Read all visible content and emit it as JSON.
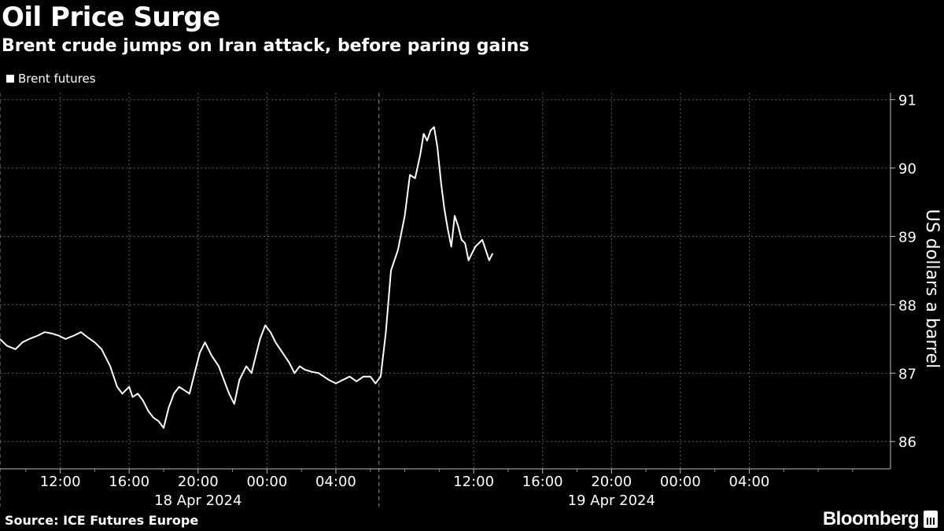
{
  "title": "Oil Price Surge",
  "subtitle": "Brent crude jumps on Iran attack, before paring gains",
  "source": "Source: ICE Futures Europe",
  "brand": "Bloomberg",
  "chart_data": {
    "type": "line",
    "title": "Oil Price Surge",
    "subtitle": "Brent crude jumps on Iran attack, before paring gains",
    "ylabel": "US dollars a barrel",
    "ylim": [
      85.6,
      91.1
    ],
    "y_ticks": [
      86,
      87,
      88,
      89,
      90,
      91
    ],
    "grid": true,
    "legend_position": "top-left",
    "x_unit": "hours since 18 Apr 2024 00:00",
    "xlim": [
      8.5,
      60.2
    ],
    "x_tick_hours": [
      12,
      16,
      20,
      24,
      28,
      36,
      40,
      44,
      48,
      52
    ],
    "x_tick_labels": [
      "12:00",
      "16:00",
      "20:00",
      "00:00",
      "04:00",
      "12:00",
      "16:00",
      "20:00",
      "00:00",
      "04:00"
    ],
    "date_labels": [
      {
        "label": "18 Apr 2024",
        "hour": 20
      },
      {
        "label": "19 Apr 2024",
        "hour": 44
      }
    ],
    "date_separators": [
      8.5,
      30.5
    ],
    "series": [
      {
        "name": "Brent futures",
        "color": "#ffffff",
        "x": [
          8.5,
          8.9,
          9.4,
          9.8,
          10.2,
          10.7,
          11.1,
          11.5,
          11.9,
          12.3,
          12.8,
          13.2,
          13.6,
          14.0,
          14.4,
          14.9,
          15.3,
          15.6,
          15.8,
          16.0,
          16.2,
          16.5,
          16.8,
          17.1,
          17.4,
          17.7,
          18.0,
          18.3,
          18.6,
          18.9,
          19.2,
          19.5,
          19.8,
          20.1,
          20.4,
          20.8,
          21.2,
          21.5,
          21.8,
          22.1,
          22.4,
          22.8,
          23.1,
          23.4,
          23.6,
          23.9,
          24.2,
          24.5,
          24.9,
          25.3,
          25.6,
          25.9,
          26.2,
          26.6,
          27.0,
          27.3,
          27.6,
          28.0,
          28.4,
          28.8,
          29.2,
          29.6,
          30.0,
          30.3,
          30.6,
          30.9,
          31.2,
          31.6,
          32.0,
          32.3,
          32.6,
          32.9,
          33.1,
          33.3,
          33.5,
          33.7,
          33.9,
          34.1,
          34.3,
          34.5,
          34.7,
          34.9,
          35.1,
          35.3,
          35.5,
          35.7,
          35.9,
          36.1,
          36.3,
          36.5,
          36.7,
          36.9,
          37.1
        ],
        "y": [
          87.5,
          87.4,
          87.35,
          87.45,
          87.5,
          87.55,
          87.6,
          87.58,
          87.55,
          87.5,
          87.55,
          87.6,
          87.52,
          87.45,
          87.35,
          87.1,
          86.8,
          86.7,
          86.75,
          86.8,
          86.65,
          86.7,
          86.6,
          86.45,
          86.35,
          86.3,
          86.2,
          86.5,
          86.7,
          86.8,
          86.75,
          86.7,
          87.0,
          87.3,
          87.45,
          87.25,
          87.1,
          86.9,
          86.7,
          86.55,
          86.9,
          87.1,
          87.0,
          87.3,
          87.5,
          87.7,
          87.6,
          87.45,
          87.3,
          87.15,
          87.0,
          87.1,
          87.05,
          87.02,
          87.0,
          86.95,
          86.9,
          86.85,
          86.9,
          86.95,
          86.88,
          86.95,
          86.95,
          86.85,
          86.95,
          87.6,
          88.5,
          88.8,
          89.3,
          89.9,
          89.85,
          90.2,
          90.5,
          90.4,
          90.55,
          90.6,
          90.3,
          89.8,
          89.4,
          89.1,
          88.85,
          89.3,
          89.15,
          88.95,
          88.9,
          88.65,
          88.75,
          88.85,
          88.9,
          88.95,
          88.8,
          88.65,
          88.75
        ]
      }
    ]
  }
}
